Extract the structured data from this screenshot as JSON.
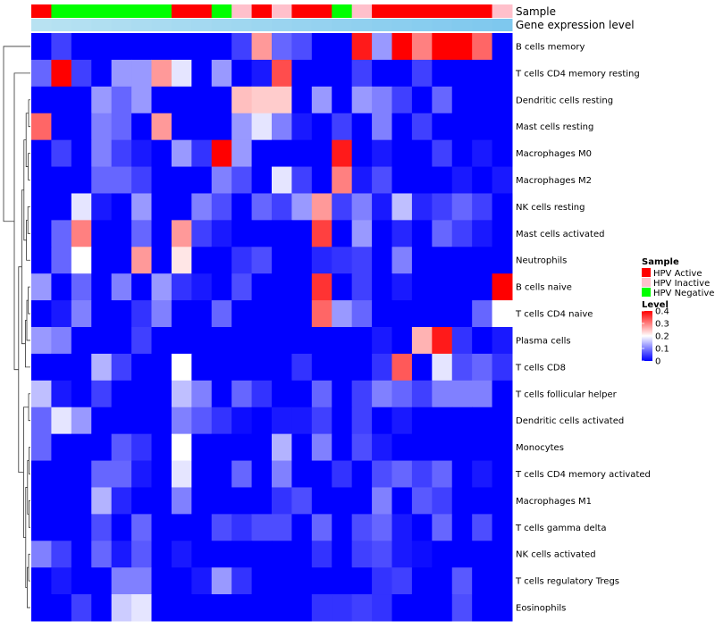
{
  "chart_data": {
    "type": "heatmap",
    "title": "",
    "annotation_tracks": [
      {
        "name": "Sample",
        "label": "Sample",
        "colors": "sample_category"
      },
      {
        "name": "Gene expression level",
        "label": "Gene expression level",
        "colors": "gradient"
      }
    ],
    "column_samples": [
      "HPV Active",
      "HPV Negative",
      "HPV Negative",
      "HPV Negative",
      "HPV Negative",
      "HPV Negative",
      "HPV Negative",
      "HPV Active",
      "HPV Active",
      "HPV Negative",
      "HPV Inactive",
      "HPV Active",
      "HPV Inactive",
      "HPV Active",
      "HPV Active",
      "HPV Negative",
      "HPV Inactive",
      "HPV Active",
      "HPV Active",
      "HPV Active",
      "HPV Active",
      "HPV Active",
      "HPV Active",
      "HPV Inactive"
    ],
    "gene_expression_gradient": {
      "start": "#b8e2f2",
      "end": "#7ec8ee"
    },
    "rows": [
      "B cells memory",
      "T cells CD4 memory resting",
      "Dendritic cells resting",
      "Mast cells resting",
      "Macrophages M0",
      "Macrophages M2",
      "NK cells resting",
      "Mast cells activated",
      "Neutrophils",
      "B cells naive",
      "T cells CD4 naive",
      "Plasma cells",
      "T cells CD8",
      "T cells follicular helper",
      "Dendritic cells activated",
      "Monocytes",
      "T cells CD4 memory activated",
      "Macrophages M1",
      "T cells gamma delta",
      "NK cells activated",
      "T cells regulatory  Tregs",
      "Eosinophils"
    ],
    "values": [
      [
        0,
        0.05,
        0,
        0,
        0,
        0,
        0,
        0,
        0,
        0,
        0.05,
        0.28,
        0.08,
        0.06,
        0,
        0,
        0.38,
        0.12,
        0.4,
        0.3,
        0.4,
        0.4,
        0.32,
        0
      ],
      [
        0.08,
        0.4,
        0.05,
        0,
        0.12,
        0.12,
        0.28,
        0.18,
        0,
        0.12,
        0,
        0.02,
        0.34,
        0,
        0,
        0,
        0.05,
        0,
        0,
        0.05,
        0,
        0,
        0,
        0
      ],
      [
        0,
        0,
        0,
        0.12,
        0.08,
        0.12,
        0,
        0,
        0,
        0,
        0.25,
        0.24,
        0.24,
        0,
        0.12,
        0,
        0.12,
        0.1,
        0.05,
        0,
        0.08,
        0,
        0,
        0
      ],
      [
        0.32,
        0,
        0,
        0.1,
        0.08,
        0,
        0.28,
        0,
        0,
        0,
        0.12,
        0.18,
        0.1,
        0.02,
        0,
        0.05,
        0,
        0.1,
        0,
        0.05,
        0,
        0,
        0,
        0
      ],
      [
        0,
        0.05,
        0,
        0.1,
        0.05,
        0.02,
        0,
        0.12,
        0.04,
        0.4,
        0.12,
        0,
        0,
        0,
        0,
        0.38,
        0,
        0.02,
        0,
        0,
        0.05,
        0,
        0.02,
        0
      ],
      [
        0,
        0,
        0,
        0.08,
        0.08,
        0.05,
        0,
        0,
        0,
        0.1,
        0.06,
        0,
        0.18,
        0.05,
        0,
        0.3,
        0.02,
        0.06,
        0,
        0,
        0,
        0.02,
        0,
        0.02
      ],
      [
        0,
        0,
        0.18,
        0.02,
        0,
        0.12,
        0,
        0,
        0.1,
        0.06,
        0,
        0.08,
        0.05,
        0.12,
        0.28,
        0.05,
        0.1,
        0.02,
        0.15,
        0.03,
        0.05,
        0.08,
        0.05,
        0
      ],
      [
        0,
        0.08,
        0.3,
        0,
        0,
        0.08,
        0,
        0.28,
        0.05,
        0.02,
        0,
        0,
        0,
        0,
        0.35,
        0,
        0.12,
        0,
        0.03,
        0,
        0.08,
        0.05,
        0.02,
        0
      ],
      [
        0,
        0.08,
        0.2,
        0,
        0,
        0.28,
        0,
        0.22,
        0,
        0,
        0.04,
        0.06,
        0,
        0,
        0.03,
        0.04,
        0.05,
        0,
        0.1,
        0,
        0,
        0,
        0,
        0
      ],
      [
        0.12,
        0,
        0.08,
        0,
        0.1,
        0,
        0.12,
        0.04,
        0.02,
        0,
        0.06,
        0,
        0,
        0,
        0.36,
        0,
        0.05,
        0,
        0.02,
        0,
        0,
        0,
        0,
        0.4
      ],
      [
        0,
        0.02,
        0.1,
        0,
        0,
        0.04,
        0.1,
        0,
        0,
        0.08,
        0,
        0,
        0,
        0,
        0.32,
        0.12,
        0.08,
        0,
        0,
        0,
        0,
        0,
        0.08,
        0.2
      ],
      [
        0.12,
        0.1,
        0,
        0,
        0,
        0.05,
        0,
        0,
        0,
        0,
        0,
        0,
        0,
        0,
        0,
        0,
        0,
        0.02,
        0,
        0.26,
        0.38,
        0.04,
        0,
        0.02
      ],
      [
        0,
        0,
        0,
        0.14,
        0.05,
        0,
        0,
        0.2,
        0,
        0,
        0,
        0,
        0,
        0.04,
        0,
        0,
        0,
        0.04,
        0.33,
        0,
        0.18,
        0.06,
        0.08,
        0.04
      ],
      [
        0.15,
        0.02,
        0,
        0.05,
        0,
        0,
        0,
        0.15,
        0.1,
        0,
        0.08,
        0.04,
        0,
        0,
        0.08,
        0,
        0.05,
        0.1,
        0.08,
        0.05,
        0.1,
        0.1,
        0.1,
        0
      ],
      [
        0.08,
        0.18,
        0.12,
        0,
        0,
        0,
        0,
        0.1,
        0.07,
        0.04,
        0.01,
        0,
        0.02,
        0.02,
        0.05,
        0,
        0.05,
        0,
        0.02,
        0,
        0,
        0,
        0,
        0
      ],
      [
        0.08,
        0,
        0,
        0,
        0.07,
        0.04,
        0,
        0.2,
        0,
        0,
        0,
        0,
        0.14,
        0,
        0.1,
        0,
        0.06,
        0.02,
        0,
        0,
        0,
        0,
        0,
        0
      ],
      [
        0,
        0,
        0,
        0.08,
        0.08,
        0.02,
        0,
        0.18,
        0,
        0,
        0.08,
        0,
        0.1,
        0,
        0,
        0.04,
        0,
        0.06,
        0.08,
        0.05,
        0.08,
        0,
        0.02,
        0
      ],
      [
        0,
        0,
        0,
        0.14,
        0.03,
        0,
        0,
        0.1,
        0,
        0,
        0,
        0,
        0.04,
        0.06,
        0,
        0,
        0,
        0.1,
        0,
        0.07,
        0.05,
        0,
        0,
        0
      ],
      [
        0,
        0,
        0,
        0.06,
        0,
        0.08,
        0,
        0,
        0,
        0.06,
        0.04,
        0.06,
        0.06,
        0,
        0.08,
        0,
        0.06,
        0.08,
        0.02,
        0,
        0.08,
        0,
        0.06,
        0
      ],
      [
        0.1,
        0.05,
        0,
        0.08,
        0.02,
        0.07,
        0,
        0.02,
        0,
        0,
        0,
        0,
        0,
        0,
        0.04,
        0,
        0.05,
        0.06,
        0.02,
        0.01,
        0,
        0,
        0,
        0
      ],
      [
        0,
        0.02,
        0,
        0,
        0.1,
        0.1,
        0,
        0,
        0.02,
        0.12,
        0.04,
        0,
        0,
        0,
        0,
        0,
        0,
        0.04,
        0.05,
        0,
        0,
        0.07,
        0,
        0
      ],
      [
        0,
        0,
        0.05,
        0,
        0.16,
        0.18,
        0,
        0,
        0,
        0,
        0,
        0,
        0,
        0,
        0.04,
        0.04,
        0.05,
        0.04,
        0,
        0,
        0,
        0.06,
        0,
        0
      ]
    ],
    "color_scale": {
      "min": 0,
      "max": 0.4,
      "low": "#0000ff",
      "mid": "#ffffff",
      "high": "#ff0000",
      "midpoint": 0.2
    },
    "legend": {
      "placement": "right",
      "sample_title": "Sample",
      "sample_items": [
        {
          "label": "HPV Active",
          "color": "#ff0000"
        },
        {
          "label": "HPV Inactive",
          "color": "#ffc0cb"
        },
        {
          "label": "HPV Negative",
          "color": "#00ff00"
        }
      ],
      "level_title": "Level",
      "level_ticks": [
        {
          "label": "0.4",
          "value": 0.4
        },
        {
          "label": "0.3",
          "value": 0.3
        },
        {
          "label": "0.2",
          "value": 0.2
        },
        {
          "label": "0.1",
          "value": 0.1
        },
        {
          "label": "0",
          "value": 0
        }
      ]
    },
    "dendrogram": "rows clustered (hierarchical), shown on left"
  }
}
